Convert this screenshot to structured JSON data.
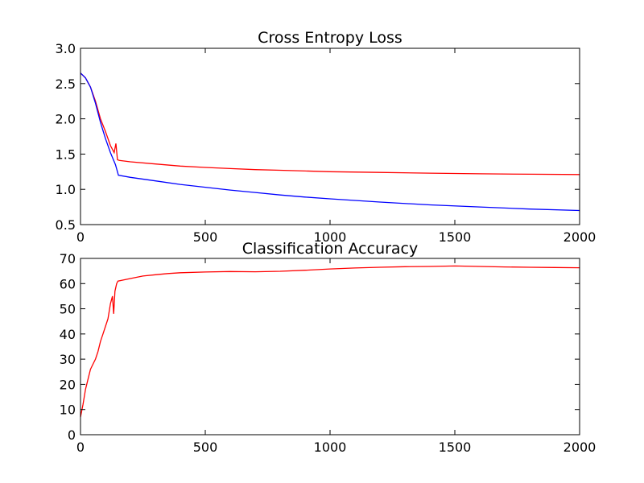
{
  "chart_data": [
    {
      "type": "line",
      "title": "Cross Entropy Loss",
      "xlabel": "",
      "ylabel": "",
      "xlim": [
        0,
        2000
      ],
      "ylim": [
        0.5,
        3.0
      ],
      "x_ticks": [
        "0",
        "500",
        "1000",
        "1500",
        "2000"
      ],
      "y_ticks": [
        "0.5",
        "1.0",
        "1.5",
        "2.0",
        "2.5",
        "3.0"
      ],
      "grid": false,
      "legend": "none",
      "series": [
        {
          "color": "#ff0000",
          "points": [
            [
              0,
              2.65
            ],
            [
              20,
              2.58
            ],
            [
              40,
              2.45
            ],
            [
              60,
              2.25
            ],
            [
              80,
              2.0
            ],
            [
              100,
              1.82
            ],
            [
              120,
              1.62
            ],
            [
              135,
              1.52
            ],
            [
              142,
              1.65
            ],
            [
              148,
              1.42
            ],
            [
              155,
              1.41
            ],
            [
              200,
              1.39
            ],
            [
              300,
              1.36
            ],
            [
              400,
              1.33
            ],
            [
              500,
              1.31
            ],
            [
              600,
              1.295
            ],
            [
              700,
              1.28
            ],
            [
              800,
              1.27
            ],
            [
              900,
              1.26
            ],
            [
              1000,
              1.25
            ],
            [
              1200,
              1.24
            ],
            [
              1400,
              1.23
            ],
            [
              1600,
              1.22
            ],
            [
              1800,
              1.215
            ],
            [
              2000,
              1.21
            ]
          ]
        },
        {
          "color": "#0000ff",
          "points": [
            [
              0,
              2.65
            ],
            [
              20,
              2.58
            ],
            [
              40,
              2.45
            ],
            [
              60,
              2.22
            ],
            [
              80,
              1.95
            ],
            [
              100,
              1.72
            ],
            [
              120,
              1.52
            ],
            [
              140,
              1.35
            ],
            [
              148,
              1.25
            ],
            [
              152,
              1.2
            ],
            [
              200,
              1.17
            ],
            [
              300,
              1.12
            ],
            [
              400,
              1.07
            ],
            [
              500,
              1.03
            ],
            [
              600,
              0.99
            ],
            [
              700,
              0.955
            ],
            [
              800,
              0.92
            ],
            [
              900,
              0.89
            ],
            [
              1000,
              0.865
            ],
            [
              1200,
              0.82
            ],
            [
              1400,
              0.78
            ],
            [
              1600,
              0.75
            ],
            [
              1800,
              0.72
            ],
            [
              2000,
              0.7
            ]
          ]
        }
      ]
    },
    {
      "type": "line",
      "title": "Classification Accuracy",
      "xlabel": "",
      "ylabel": "",
      "xlim": [
        0,
        2000
      ],
      "ylim": [
        0,
        70
      ],
      "x_ticks": [
        "0",
        "500",
        "1000",
        "1500",
        "2000"
      ],
      "y_ticks": [
        "0",
        "10",
        "20",
        "30",
        "40",
        "50",
        "60",
        "70"
      ],
      "grid": false,
      "legend": "none",
      "series": [
        {
          "color": "#ff0000",
          "points": [
            [
              0,
              7
            ],
            [
              10,
              12
            ],
            [
              20,
              18
            ],
            [
              30,
              22
            ],
            [
              40,
              26
            ],
            [
              50,
              28
            ],
            [
              60,
              30
            ],
            [
              70,
              33
            ],
            [
              80,
              37
            ],
            [
              90,
              40
            ],
            [
              100,
              43
            ],
            [
              110,
              46
            ],
            [
              120,
              52
            ],
            [
              128,
              55
            ],
            [
              133,
              48
            ],
            [
              138,
              57
            ],
            [
              145,
              60
            ],
            [
              150,
              61
            ],
            [
              200,
              62
            ],
            [
              250,
              63
            ],
            [
              300,
              63.5
            ],
            [
              350,
              64
            ],
            [
              400,
              64.3
            ],
            [
              500,
              64.6
            ],
            [
              600,
              64.8
            ],
            [
              700,
              64.7
            ],
            [
              800,
              64.9
            ],
            [
              900,
              65.3
            ],
            [
              1000,
              65.8
            ],
            [
              1100,
              66.2
            ],
            [
              1200,
              66.5
            ],
            [
              1300,
              66.7
            ],
            [
              1400,
              66.8
            ],
            [
              1500,
              67
            ],
            [
              1600,
              66.8
            ],
            [
              1700,
              66.6
            ],
            [
              1800,
              66.5
            ],
            [
              1900,
              66.4
            ],
            [
              2000,
              66.3
            ]
          ]
        }
      ]
    }
  ]
}
